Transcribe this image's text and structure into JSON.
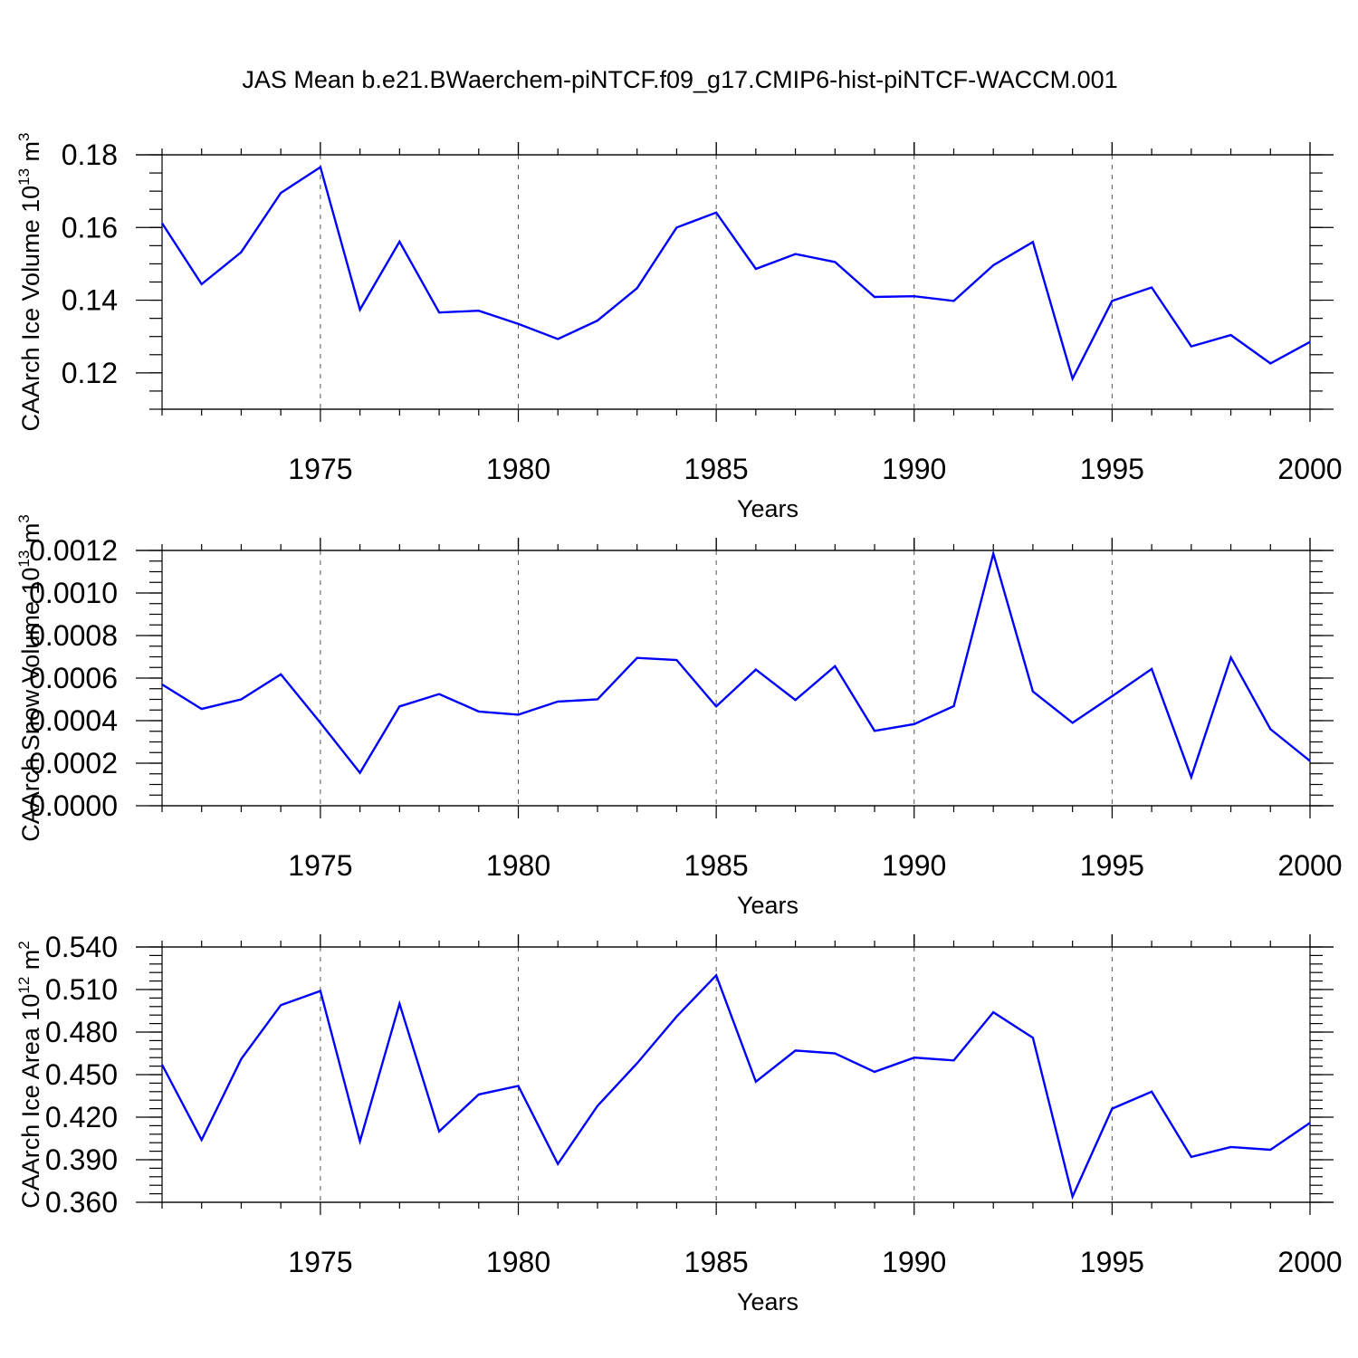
{
  "title": "JAS Mean b.e21.BWaerchem-piNTCF.f09_g17.CMIP6-hist-piNTCF-WACCM.001",
  "colors": {
    "line": "#0000ff",
    "axes": "#000000",
    "grid": "#555555"
  },
  "chart_data": [
    {
      "type": "line",
      "name": "ice-volume",
      "ylabel": "CAArch Ice Volume 10",
      "ylabel_exp": "13",
      "ylabel_unit": " m",
      "ylabel_unit_exp": "3",
      "xlabel": "Years",
      "xlim": [
        1971,
        2000
      ],
      "ylim": [
        0.11,
        0.18
      ],
      "yticks": [
        0.12,
        0.14,
        0.16,
        0.18
      ],
      "yticklabels": [
        "0.12",
        "0.14",
        "0.16",
        "0.18"
      ],
      "yminor": 0.005,
      "xticks": [
        1975,
        1980,
        1985,
        1990,
        1995,
        2000
      ],
      "xticklabels": [
        "1975",
        "1980",
        "1985",
        "1990",
        "1995",
        "2000"
      ],
      "x": [
        1971,
        1972,
        1973,
        1974,
        1975,
        1976,
        1977,
        1978,
        1979,
        1980,
        1981,
        1982,
        1983,
        1984,
        1985,
        1986,
        1987,
        1988,
        1989,
        1990,
        1991,
        1992,
        1993,
        1994,
        1995,
        1996,
        1997,
        1998,
        1999,
        2000
      ],
      "series": [
        {
          "name": "CAArch Ice Volume",
          "values": [
            0.1612,
            0.1444,
            0.1532,
            0.1695,
            0.1766,
            0.1374,
            0.1561,
            0.1366,
            0.1371,
            0.1335,
            0.1293,
            0.1344,
            0.1433,
            0.16,
            0.1641,
            0.1486,
            0.1527,
            0.1505,
            0.1409,
            0.1411,
            0.1398,
            0.1496,
            0.156,
            0.1184,
            0.1398,
            0.1435,
            0.1273,
            0.1304,
            0.1226,
            0.1285
          ]
        }
      ]
    },
    {
      "type": "line",
      "name": "snow-volume",
      "ylabel": "CAArch Snow Volume 10",
      "ylabel_exp": "13",
      "ylabel_unit": " m",
      "ylabel_unit_exp": "3",
      "xlabel": "Years",
      "xlim": [
        1971,
        2000
      ],
      "ylim": [
        0.0,
        0.0012
      ],
      "yticks": [
        0.0,
        0.0002,
        0.0004,
        0.0006,
        0.0008,
        0.001,
        0.0012
      ],
      "yticklabels": [
        "0.0000",
        "0.0002",
        "0.0004",
        "0.0006",
        "0.0008",
        "0.0010",
        "0.0012"
      ],
      "yminor": 5e-05,
      "xticks": [
        1975,
        1980,
        1985,
        1990,
        1995,
        2000
      ],
      "xticklabels": [
        "1975",
        "1980",
        "1985",
        "1990",
        "1995",
        "2000"
      ],
      "x": [
        1971,
        1972,
        1973,
        1974,
        1975,
        1976,
        1977,
        1978,
        1979,
        1980,
        1981,
        1982,
        1983,
        1984,
        1985,
        1986,
        1987,
        1988,
        1989,
        1990,
        1991,
        1992,
        1993,
        1994,
        1995,
        1996,
        1997,
        1998,
        1999,
        2000
      ],
      "series": [
        {
          "name": "CAArch Snow Volume",
          "values": [
            0.00057,
            0.000455,
            0.0005,
            0.000618,
            0.00039,
            0.000155,
            0.000467,
            0.000525,
            0.000443,
            0.000428,
            0.00049,
            0.0005,
            0.000695,
            0.000685,
            0.000467,
            0.00064,
            0.000497,
            0.000656,
            0.000352,
            0.000384,
            0.000468,
            0.001185,
            0.000537,
            0.00039,
            0.000515,
            0.000643,
            0.000135,
            0.000697,
            0.00036,
            0.00021
          ]
        }
      ]
    },
    {
      "type": "line",
      "name": "ice-area",
      "ylabel": "CAArch Ice Area 10",
      "ylabel_exp": "12",
      "ylabel_unit": " m",
      "ylabel_unit_exp": "2",
      "xlabel": "Years",
      "xlim": [
        1971,
        2000
      ],
      "ylim": [
        0.36,
        0.54
      ],
      "yticks": [
        0.36,
        0.39,
        0.42,
        0.45,
        0.48,
        0.51,
        0.54
      ],
      "yticklabels": [
        "0.360",
        "0.390",
        "0.420",
        "0.450",
        "0.480",
        "0.510",
        "0.540"
      ],
      "yminor": 0.006,
      "xticks": [
        1975,
        1980,
        1985,
        1990,
        1995,
        2000
      ],
      "xticklabels": [
        "1975",
        "1980",
        "1985",
        "1990",
        "1995",
        "2000"
      ],
      "x": [
        1971,
        1972,
        1973,
        1974,
        1975,
        1976,
        1977,
        1978,
        1979,
        1980,
        1981,
        1982,
        1983,
        1984,
        1985,
        1986,
        1987,
        1988,
        1989,
        1990,
        1991,
        1992,
        1993,
        1994,
        1995,
        1996,
        1997,
        1998,
        1999,
        2000
      ],
      "series": [
        {
          "name": "CAArch Ice Area",
          "values": [
            0.457,
            0.404,
            0.461,
            0.499,
            0.509,
            0.403,
            0.5,
            0.41,
            0.436,
            0.442,
            0.387,
            0.428,
            0.458,
            0.491,
            0.52,
            0.445,
            0.467,
            0.465,
            0.452,
            0.462,
            0.46,
            0.494,
            0.476,
            0.364,
            0.426,
            0.438,
            0.392,
            0.399,
            0.397,
            0.416
          ]
        }
      ]
    }
  ]
}
